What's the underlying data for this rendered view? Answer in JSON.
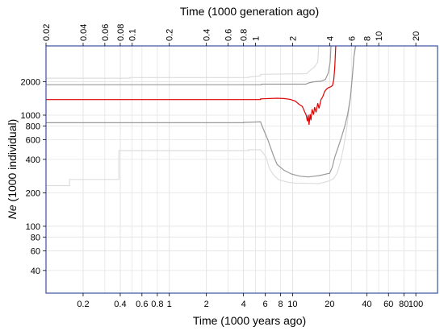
{
  "chart_data": {
    "type": "line",
    "title": "",
    "xlabel": "Time (1000 years ago)",
    "x2label": "Time (1000 generation ago)",
    "ylabel_italic": "Ne",
    "ylabel_rest": " (1000 individual)",
    "x_scale": "log",
    "y_scale": "log",
    "xlim": [
      0.1,
      150
    ],
    "x2lim": [
      0.02,
      30
    ],
    "ylim": [
      25,
      4200
    ],
    "grid": true,
    "x_ticks": [
      {
        "value": 0.2,
        "label": "0.2"
      },
      {
        "value": 0.4,
        "label": "0.4"
      },
      {
        "value": 0.6,
        "label": "0.6"
      },
      {
        "value": 0.8,
        "label": "0.8"
      },
      {
        "value": 1,
        "label": "1"
      },
      {
        "value": 2,
        "label": "2"
      },
      {
        "value": 4,
        "label": "4"
      },
      {
        "value": 6,
        "label": "6"
      },
      {
        "value": 8,
        "label": "8"
      },
      {
        "value": 10,
        "label": "10"
      },
      {
        "value": 20,
        "label": "20"
      },
      {
        "value": 40,
        "label": "40"
      },
      {
        "value": 60,
        "label": "60"
      },
      {
        "value": 80,
        "label": "80"
      },
      {
        "value": 100,
        "label": "100"
      }
    ],
    "x2_ticks": [
      {
        "value": 0.02,
        "label": "0.02"
      },
      {
        "value": 0.04,
        "label": "0.04"
      },
      {
        "value": 0.06,
        "label": "0.06"
      },
      {
        "value": 0.08,
        "label": "0.08"
      },
      {
        "value": 0.1,
        "label": "0.1"
      },
      {
        "value": 0.2,
        "label": "0.2"
      },
      {
        "value": 0.4,
        "label": "0.4"
      },
      {
        "value": 0.6,
        "label": "0.6"
      },
      {
        "value": 0.8,
        "label": "0.8"
      },
      {
        "value": 1,
        "label": "1"
      },
      {
        "value": 2,
        "label": "2"
      },
      {
        "value": 4,
        "label": "4"
      },
      {
        "value": 6,
        "label": "6"
      },
      {
        "value": 8,
        "label": "8"
      },
      {
        "value": 10,
        "label": "10"
      },
      {
        "value": 20,
        "label": "20"
      }
    ],
    "y_ticks": [
      {
        "value": 40,
        "label": "40"
      },
      {
        "value": 60,
        "label": "60"
      },
      {
        "value": 80,
        "label": "80"
      },
      {
        "value": 100,
        "label": "100"
      },
      {
        "value": 200,
        "label": "200"
      },
      {
        "value": 400,
        "label": "400"
      },
      {
        "value": 600,
        "label": "600"
      },
      {
        "value": 800,
        "label": "800"
      },
      {
        "value": 1000,
        "label": "1000"
      },
      {
        "value": 2000,
        "label": "2000"
      }
    ],
    "series": [
      {
        "color": "#dddddd",
        "points": [
          [
            0.1,
            232
          ],
          [
            0.155,
            232
          ],
          [
            0.155,
            264
          ],
          [
            0.39,
            264
          ],
          [
            0.39,
            480
          ],
          [
            4.4,
            480
          ],
          [
            4.4,
            488
          ],
          [
            5.5,
            488
          ],
          [
            6.1,
            420
          ],
          [
            6.5,
            330
          ],
          [
            7,
            290
          ],
          [
            7.7,
            262
          ],
          [
            8.5,
            255
          ],
          [
            9.3,
            248
          ],
          [
            10.5,
            245
          ],
          [
            12,
            244
          ],
          [
            13.5,
            243
          ],
          [
            15,
            243
          ],
          [
            16,
            241
          ],
          [
            17,
            245
          ],
          [
            18,
            248
          ],
          [
            19,
            252
          ],
          [
            20,
            258
          ],
          [
            21.5,
            268
          ],
          [
            23,
            300
          ],
          [
            24.5,
            380
          ],
          [
            26,
            520
          ],
          [
            27.5,
            760
          ],
          [
            29,
            1250
          ],
          [
            30.5,
            2200
          ],
          [
            32,
            4200
          ]
        ]
      },
      {
        "color": "#dddddd",
        "points": [
          [
            0.1,
            2150
          ],
          [
            0.48,
            2150
          ],
          [
            0.48,
            2180
          ],
          [
            4.4,
            2180
          ],
          [
            4.4,
            2200
          ],
          [
            5.5,
            2260
          ],
          [
            5.5,
            2330
          ],
          [
            13,
            2360
          ],
          [
            14,
            2550
          ],
          [
            15,
            2700
          ],
          [
            16,
            3000
          ],
          [
            16.3,
            4200
          ]
        ]
      },
      {
        "color": "#999999",
        "points": [
          [
            0.1,
            855
          ],
          [
            4,
            855
          ],
          [
            4,
            860
          ],
          [
            5.5,
            870
          ],
          [
            5.6,
            820
          ],
          [
            6.3,
            600
          ],
          [
            7,
            430
          ],
          [
            7.5,
            360
          ],
          [
            8.5,
            320
          ],
          [
            9.8,
            295
          ],
          [
            11.5,
            282
          ],
          [
            13.5,
            278
          ],
          [
            15,
            282
          ],
          [
            16.5,
            286
          ],
          [
            18,
            292
          ],
          [
            20,
            300
          ],
          [
            21,
            340
          ],
          [
            22,
            420
          ],
          [
            23.5,
            520
          ],
          [
            25,
            640
          ],
          [
            26.5,
            790
          ],
          [
            28,
            1020
          ],
          [
            29.5,
            1460
          ],
          [
            30.5,
            2200
          ],
          [
            31.5,
            3400
          ],
          [
            32.5,
            4200
          ]
        ]
      },
      {
        "color": "#999999",
        "points": [
          [
            0.1,
            1880
          ],
          [
            5.6,
            1880
          ],
          [
            5.6,
            1900
          ],
          [
            12.8,
            1900
          ],
          [
            13.5,
            1950
          ],
          [
            15,
            2000
          ],
          [
            17,
            2020
          ],
          [
            18.5,
            2100
          ],
          [
            19.5,
            2400
          ],
          [
            20.2,
            3000
          ],
          [
            20.5,
            4200
          ]
        ]
      },
      {
        "color": "#dd0000",
        "points": [
          [
            0.1,
            1380
          ],
          [
            5.5,
            1380
          ],
          [
            5.5,
            1400
          ],
          [
            7.5,
            1420
          ],
          [
            8.5,
            1410
          ],
          [
            9.5,
            1390
          ],
          [
            10.5,
            1340
          ],
          [
            11.2,
            1260
          ],
          [
            12,
            1200
          ],
          [
            12.4,
            1100
          ],
          [
            12.9,
            1000
          ],
          [
            13.2,
            880
          ],
          [
            13.4,
            1010
          ],
          [
            13.6,
            820
          ],
          [
            13.9,
            1020
          ],
          [
            14.1,
            900
          ],
          [
            14.4,
            1130
          ],
          [
            14.8,
            1010
          ],
          [
            15.1,
            1180
          ],
          [
            15.5,
            1060
          ],
          [
            16,
            1280
          ],
          [
            16.4,
            1150
          ],
          [
            17,
            1380
          ],
          [
            17.6,
            1470
          ],
          [
            18.2,
            1630
          ],
          [
            18.9,
            1720
          ],
          [
            19.6,
            1770
          ],
          [
            20.4,
            1800
          ],
          [
            21.1,
            1850
          ],
          [
            21.6,
            2100
          ],
          [
            22,
            2700
          ],
          [
            22.4,
            4200
          ]
        ]
      }
    ]
  }
}
